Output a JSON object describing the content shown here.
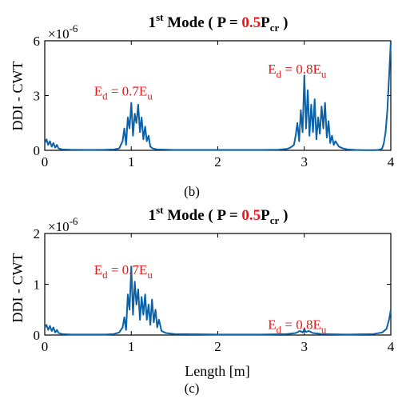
{
  "chart_data": [
    {
      "panel": "b",
      "type": "line",
      "title": {
        "base": "1",
        "sup": "st",
        "pre": " Mode ( P = ",
        "value": "0.5",
        "post": "P",
        "sub": "cr",
        "end": " )"
      },
      "ylabel": "DDI - CWT",
      "xlabel": "",
      "caption": "(b)",
      "y_exponent": "×10",
      "y_exponent_power": "-6",
      "xlim": [
        0,
        4
      ],
      "ylim": [
        0,
        6
      ],
      "xticks": [
        0,
        1,
        2,
        3,
        4
      ],
      "yticks": [
        0,
        3,
        6
      ],
      "line_color": "#0b62a8",
      "title_highlight_color": "#e8191b",
      "annotation_color": "#e8191b",
      "annotations": [
        {
          "main": "E",
          "sub": "d",
          "rest": " = 0.7E",
          "sub2": "u",
          "at_x": 0.57,
          "at_y": 3.0
        },
        {
          "main": "E",
          "sub": "d",
          "rest": " = 0.8E",
          "sub2": "u",
          "at_x": 2.58,
          "at_y": 4.2
        }
      ],
      "x": [
        0,
        0.02,
        0.04,
        0.06,
        0.08,
        0.1,
        0.12,
        0.14,
        0.16,
        0.2,
        0.3,
        0.5,
        0.7,
        0.8,
        0.86,
        0.9,
        0.92,
        0.94,
        0.96,
        0.98,
        1.0,
        1.02,
        1.04,
        1.06,
        1.08,
        1.1,
        1.12,
        1.14,
        1.16,
        1.18,
        1.2,
        1.22,
        1.25,
        1.3,
        1.5,
        2.0,
        2.5,
        2.7,
        2.8,
        2.84,
        2.88,
        2.9,
        2.92,
        2.94,
        2.96,
        2.98,
        3.0,
        3.02,
        3.04,
        3.06,
        3.08,
        3.1,
        3.12,
        3.14,
        3.16,
        3.18,
        3.2,
        3.22,
        3.24,
        3.26,
        3.28,
        3.3,
        3.32,
        3.34,
        3.36,
        3.4,
        3.45,
        3.5,
        3.6,
        3.7,
        3.8,
        3.85,
        3.88,
        3.9,
        3.92,
        3.94,
        3.96,
        3.98,
        4.0
      ],
      "y": [
        0.4,
        0.6,
        0.3,
        0.5,
        0.2,
        0.4,
        0.15,
        0.3,
        0.1,
        0.05,
        0.03,
        0.02,
        0.03,
        0.05,
        0.1,
        0.5,
        1.2,
        0.3,
        1.8,
        1.2,
        2.6,
        0.8,
        2.0,
        1.5,
        2.5,
        1.0,
        1.8,
        0.6,
        1.3,
        0.5,
        0.8,
        0.2,
        0.1,
        0.05,
        0.02,
        0.02,
        0.02,
        0.03,
        0.08,
        0.15,
        0.3,
        0.8,
        1.5,
        0.5,
        2.2,
        1.0,
        4.1,
        1.2,
        3.3,
        0.8,
        2.5,
        1.0,
        2.8,
        0.6,
        1.8,
        0.9,
        2.4,
        1.2,
        2.6,
        0.7,
        1.6,
        0.4,
        0.8,
        0.3,
        0.5,
        0.2,
        0.1,
        0.05,
        0.02,
        0.01,
        0.01,
        0.02,
        0.05,
        0.1,
        0.4,
        1.0,
        2.2,
        4.0,
        6.0
      ]
    },
    {
      "panel": "c",
      "type": "line",
      "title": {
        "base": "1",
        "sup": "st",
        "pre": " Mode ( P = ",
        "value": "0.5",
        "post": "P",
        "sub": "cr",
        "end": " )"
      },
      "ylabel": "DDI - CWT",
      "xlabel": "Length [m]",
      "caption": "(c)",
      "y_exponent": "×10",
      "y_exponent_power": "-6",
      "xlim": [
        0,
        4
      ],
      "ylim": [
        0,
        2
      ],
      "xticks": [
        0,
        1,
        2,
        3,
        4
      ],
      "yticks": [
        0,
        1,
        2
      ],
      "line_color": "#0b62a8",
      "title_highlight_color": "#e8191b",
      "annotation_color": "#e8191b",
      "annotations": [
        {
          "main": "E",
          "sub": "d",
          "rest": " = 0.7E",
          "sub2": "u",
          "at_x": 0.57,
          "at_y": 1.2
        },
        {
          "main": "E",
          "sub": "d",
          "rest": " = 0.8E",
          "sub2": "u",
          "at_x": 2.58,
          "at_y": 0.12
        }
      ],
      "x": [
        0,
        0.02,
        0.04,
        0.06,
        0.08,
        0.1,
        0.12,
        0.14,
        0.16,
        0.2,
        0.3,
        0.5,
        0.7,
        0.8,
        0.86,
        0.9,
        0.92,
        0.94,
        0.96,
        0.98,
        1.0,
        1.02,
        1.04,
        1.06,
        1.08,
        1.1,
        1.12,
        1.14,
        1.16,
        1.18,
        1.2,
        1.22,
        1.24,
        1.26,
        1.28,
        1.3,
        1.32,
        1.35,
        1.4,
        1.5,
        2.0,
        2.5,
        2.8,
        2.9,
        2.95,
        2.98,
        3.0,
        3.02,
        3.05,
        3.1,
        3.2,
        3.5,
        3.8,
        3.9,
        3.95,
        3.98,
        4.0
      ],
      "y": [
        0.15,
        0.2,
        0.1,
        0.18,
        0.08,
        0.15,
        0.05,
        0.1,
        0.04,
        0.02,
        0.01,
        0.01,
        0.01,
        0.02,
        0.05,
        0.15,
        0.35,
        0.1,
        0.8,
        0.5,
        1.35,
        0.4,
        1.05,
        0.6,
        0.9,
        0.3,
        0.75,
        0.4,
        0.8,
        0.3,
        0.6,
        0.2,
        0.7,
        0.25,
        0.5,
        0.15,
        0.3,
        0.08,
        0.04,
        0.02,
        0.01,
        0.01,
        0.02,
        0.04,
        0.08,
        0.05,
        0.12,
        0.06,
        0.08,
        0.04,
        0.02,
        0.01,
        0.02,
        0.05,
        0.12,
        0.3,
        0.5
      ]
    }
  ]
}
